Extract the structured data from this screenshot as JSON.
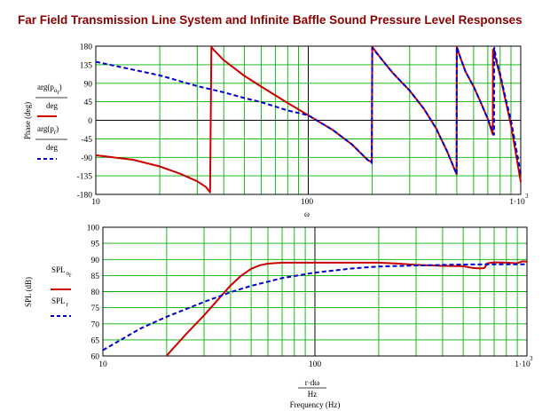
{
  "title": "Far Field Transmission Line System and Infinite Baffle Sound Pressure Level Responses",
  "colors": {
    "tl": "#cc0000",
    "ib": "#0000cc",
    "grid": "#00b000",
    "title": "#8b0000",
    "axis": "#000000"
  },
  "chart_data": [
    {
      "type": "line",
      "xscale": "log",
      "xlim": [
        10,
        1000
      ],
      "ylim": [
        -180,
        180
      ],
      "x_ticks": [
        "10",
        "100",
        "1·10"
      ],
      "x_tick_exp": "3",
      "y_ticks": [
        "180",
        "135",
        "90",
        "45",
        "0",
        "-45",
        "-90",
        "-135",
        "-180"
      ],
      "ylabel": "Phase (deg)",
      "xlabel": "ω",
      "grid": true,
      "legend": [
        {
          "num": "arg(p",
          "sub": "o",
          "sub2": "r",
          "close": ")",
          "den": "deg"
        },
        {
          "num": "arg(p",
          "sub": "r",
          "sub2": "",
          "close": ")",
          "den": "deg"
        }
      ],
      "series": [
        {
          "color": "tl",
          "dash": "solid",
          "x": [
            10,
            15,
            20,
            25,
            30,
            33,
            34.5,
            35,
            36,
            40,
            50,
            60,
            80,
            100,
            130,
            160,
            190,
            199,
            200,
            220,
            250,
            300,
            350,
            400,
            450,
            499,
            500,
            520,
            550,
            600,
            650,
            700,
            739,
            740,
            750,
            790,
            800,
            850,
            900,
            1000
          ],
          "y": [
            -85,
            -96,
            -112,
            -130,
            -148,
            -162,
            -175,
            178,
            170,
            146,
            108,
            82,
            42,
            12,
            -23,
            -58,
            -96,
            -102,
            178,
            150,
            115,
            72,
            28,
            -20,
            -75,
            -131,
            178,
            152,
            118,
            82,
            42,
            3,
            -35,
            172,
            162,
            118,
            107,
            46,
            -12,
            -150
          ]
        },
        {
          "color": "ib",
          "dash": "dashed",
          "x": [
            10,
            20,
            30,
            40,
            50,
            60,
            80,
            100,
            130,
            160,
            190,
            199,
            200,
            220,
            250,
            300,
            350,
            400,
            450,
            499,
            500,
            520,
            550,
            600,
            650,
            700,
            749,
            750,
            770,
            800,
            850,
            900,
            1000
          ],
          "y": [
            142,
            109,
            83,
            68,
            54,
            44,
            24,
            12,
            -23,
            -58,
            -96,
            -104,
            176,
            150,
            115,
            72,
            28,
            -20,
            -75,
            -131,
            178,
            152,
            118,
            82,
            42,
            3,
            -35,
            176,
            145,
            112,
            52,
            0,
            -130
          ]
        }
      ]
    },
    {
      "type": "line",
      "xscale": "log",
      "xlim": [
        10,
        1000
      ],
      "ylim": [
        60,
        100
      ],
      "x_ticks": [
        "10",
        "100",
        "1·10"
      ],
      "x_tick_exp": "3",
      "y_ticks": [
        "100",
        "95",
        "90",
        "85",
        "80",
        "75",
        "70",
        "65",
        "60"
      ],
      "ylabel": "SPL (dB)",
      "xlabel": "Frequency (Hz)",
      "xlabel_num": "r·dω",
      "xlabel_den": "Hz",
      "grid": true,
      "legend": [
        {
          "name": "SPL",
          "sub": "o",
          "sub2": "r"
        },
        {
          "name": "SPL",
          "sub": "r",
          "sub2": ""
        }
      ],
      "series": [
        {
          "color": "tl",
          "dash": "solid",
          "x": [
            20,
            25,
            30,
            35,
            40,
            45,
            50,
            55,
            60,
            70,
            100,
            150,
            200,
            250,
            300,
            400,
            500,
            550,
            600,
            630,
            650,
            700,
            800,
            900,
            950,
            1000
          ],
          "y": [
            60.1,
            67.2,
            72.6,
            77.6,
            81.9,
            85.0,
            87.1,
            88.2,
            88.7,
            89.0,
            89.0,
            89.0,
            89.0,
            88.7,
            88.3,
            88.0,
            87.9,
            87.4,
            87.2,
            87.3,
            88.8,
            89.1,
            89.0,
            88.8,
            89.4,
            89.3
          ]
        },
        {
          "color": "ib",
          "dash": "dashed",
          "x": [
            10,
            15,
            20,
            30,
            40,
            50,
            70,
            100,
            150,
            200,
            300,
            400,
            500,
            700,
            1000
          ],
          "y": [
            61.8,
            68.5,
            72.2,
            76.8,
            79.8,
            81.8,
            84.2,
            85.9,
            87.2,
            87.8,
            88.1,
            88.3,
            88.4,
            88.5,
            88.5
          ]
        }
      ]
    }
  ]
}
